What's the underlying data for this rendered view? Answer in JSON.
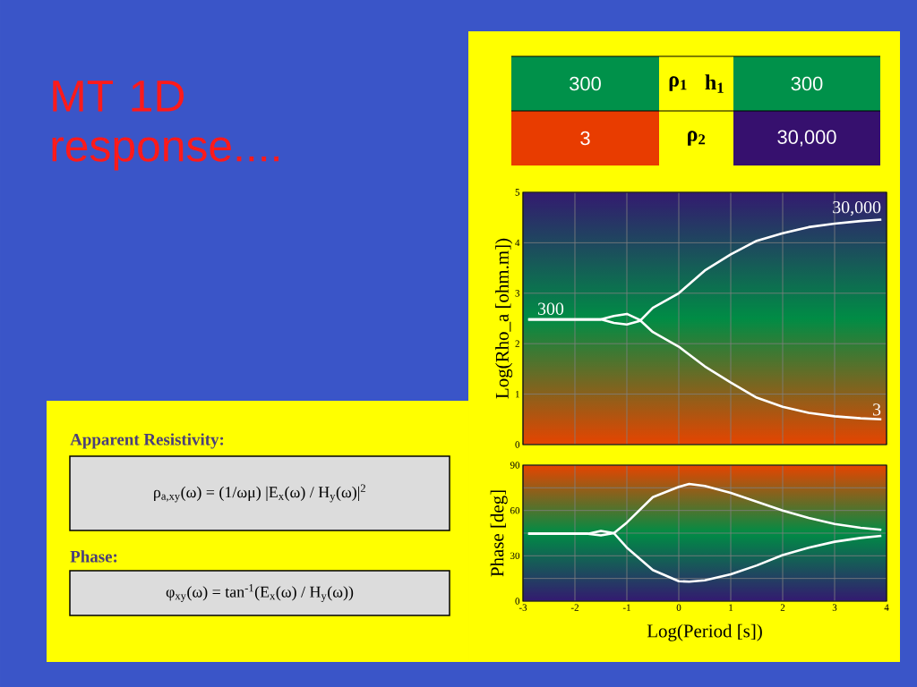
{
  "chart_data": [
    {
      "type": "line",
      "title": "MT 1D response....",
      "ylabel": "Log(Rho_a [ohm.m])",
      "xlim": [
        -3,
        4
      ],
      "ylim": [
        0,
        5
      ],
      "xticks": [
        -3,
        -2,
        -1,
        0,
        1,
        2,
        3,
        4
      ],
      "yticks": [
        0,
        1,
        2,
        3,
        4,
        5
      ],
      "tick_labels": "y",
      "grid": true,
      "series": [
        {
          "name": "30,000",
          "color": "#ffffff",
          "x": [
            -2.9,
            -2,
            -1.5,
            -1.25,
            -1,
            -0.75,
            -0.5,
            0,
            0.5,
            1,
            1.5,
            2,
            2.5,
            3,
            3.5,
            3.9
          ],
          "values": [
            2.48,
            2.48,
            2.48,
            2.41,
            2.38,
            2.45,
            2.71,
            3.0,
            3.45,
            3.77,
            4.04,
            4.19,
            4.31,
            4.38,
            4.43,
            4.46
          ]
        },
        {
          "name": "3",
          "color": "#ffffff",
          "x": [
            -2.9,
            -2,
            -1.5,
            -1.25,
            -1,
            -0.75,
            -0.5,
            0,
            0.5,
            1,
            1.5,
            2,
            2.5,
            3,
            3.5,
            3.9
          ],
          "values": [
            2.48,
            2.48,
            2.48,
            2.55,
            2.59,
            2.47,
            2.23,
            1.94,
            1.55,
            1.23,
            0.93,
            0.75,
            0.63,
            0.56,
            0.52,
            0.5
          ]
        }
      ],
      "annotations": [
        "300",
        "ρ$_{1}$",
        "h$_{1}$",
        "300",
        "3",
        "ρ$_{2}$",
        "30,000",
        {
          "text": "300",
          "x": -2.9,
          "y": 2.48
        },
        "Apparent Resistivity:",
        "ρ$_{a,xy}$(ω) = (1/ωμ) |E$_{x}$(ω) / H$_{y}$(ω)|$^{2}$",
        "Phase:",
        "φ$_{xy}$(ω) = tan$^{-1}$(E$_{x}$(ω) / H$_{y}$(ω))"
      ]
    },
    {
      "type": "line",
      "xlabel": "Log(Period [s])",
      "ylabel": "Phase [deg]",
      "xlim": [
        -3,
        4
      ],
      "ylim": [
        0,
        90
      ],
      "xticks": [
        -3,
        -2,
        -1,
        0,
        1,
        2,
        3,
        4
      ],
      "yticks": [
        0,
        {
          "value": 15,
          "label": null
        },
        30,
        {
          "value": 45,
          "label": null
        },
        60,
        {
          "value": 75,
          "label": null
        },
        90
      ],
      "grid": true,
      "series": [
        {
          "color": "#ffffff",
          "x": [
            -2.9,
            -2,
            -1.75,
            -1.5,
            -1.25,
            -1,
            -0.5,
            0,
            0.2,
            0.5,
            1,
            1.5,
            2,
            2.5,
            3,
            3.5,
            3.9
          ],
          "values": [
            44.6,
            44.6,
            44.6,
            46.5,
            45,
            52,
            68.8,
            75.6,
            77.6,
            76.2,
            71.7,
            65.8,
            59.9,
            55,
            51.1,
            48.5,
            47.2
          ]
        },
        {
          "color": "#ffffff",
          "x": [
            -2.9,
            -2,
            -1.75,
            -1.5,
            -1.25,
            -1,
            -0.5,
            0,
            0.2,
            0.5,
            1,
            1.5,
            2,
            2.5,
            3,
            3.5,
            3.9
          ],
          "values": [
            44.6,
            44.6,
            44.6,
            43.5,
            45,
            35.4,
            20.6,
            13.2,
            12.9,
            13.8,
            17.7,
            23.6,
            30.5,
            35.4,
            39.3,
            41.8,
            43.2
          ]
        }
      ]
    }
  ]
}
